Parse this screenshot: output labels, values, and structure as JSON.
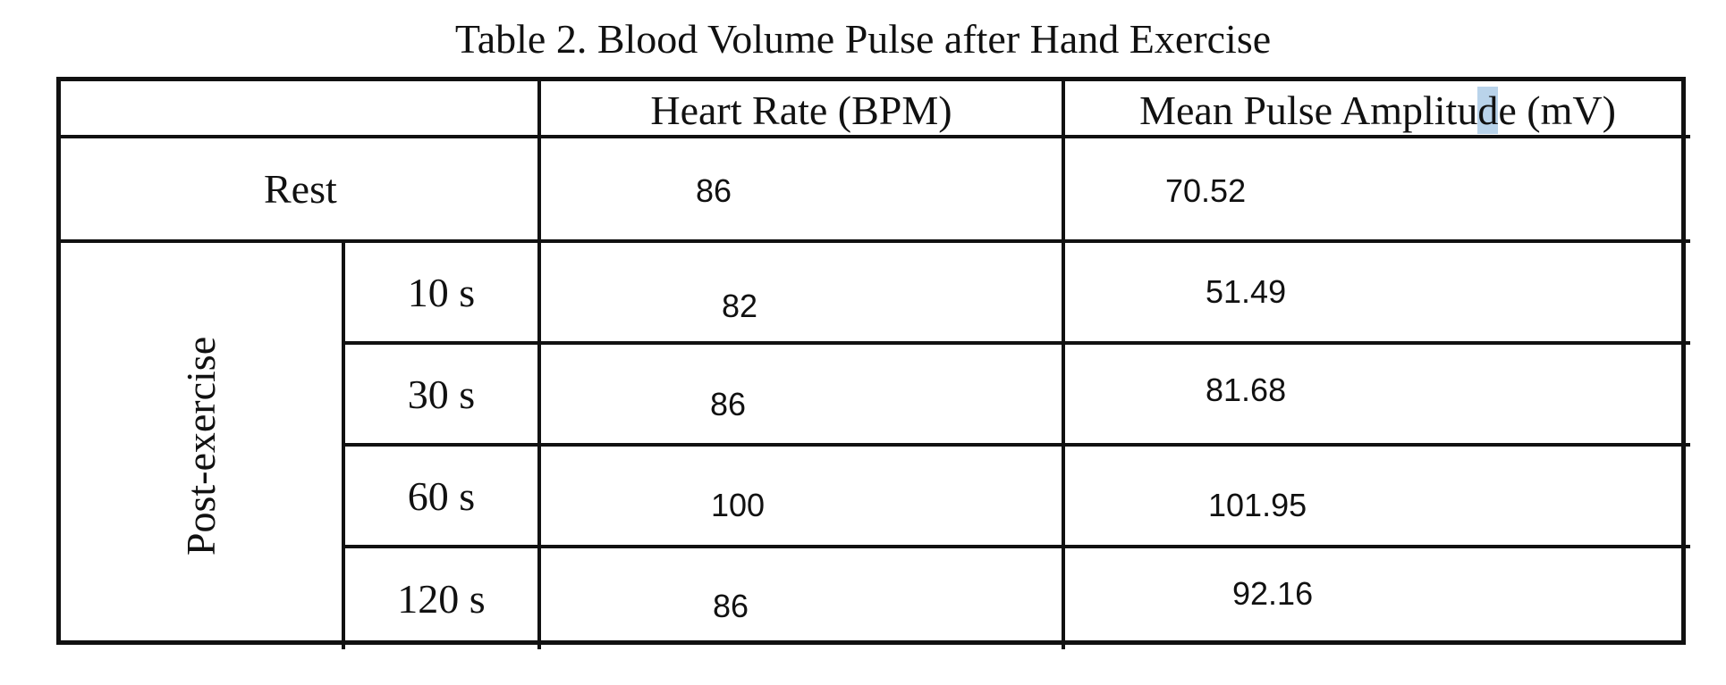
{
  "table": {
    "caption": "Table 2. Blood Volume Pulse after Hand Exercise",
    "headers": {
      "corner": "",
      "heart_rate": "Heart Rate (BPM)",
      "mean_pulse_amplitude_pre": "Mean Pulse Amplitu",
      "mean_pulse_amplitude_sel": "d",
      "mean_pulse_amplitude_post": "e (mV)"
    },
    "rest": {
      "label": "Rest",
      "heart_rate": "86",
      "mean_pulse_amplitude": "70.52"
    },
    "post_exercise": {
      "label": "Post-exercise",
      "rows": [
        {
          "time": "10 s",
          "heart_rate": "82",
          "mean_pulse_amplitude": "51.49"
        },
        {
          "time": "30 s",
          "heart_rate": "86",
          "mean_pulse_amplitude": "81.68"
        },
        {
          "time": "60 s",
          "heart_rate": "100",
          "mean_pulse_amplitude": "101.95"
        },
        {
          "time": "120 s",
          "heart_rate": "86",
          "mean_pulse_amplitude": "92.16"
        }
      ]
    },
    "selection_color": "#b9d3ea"
  }
}
